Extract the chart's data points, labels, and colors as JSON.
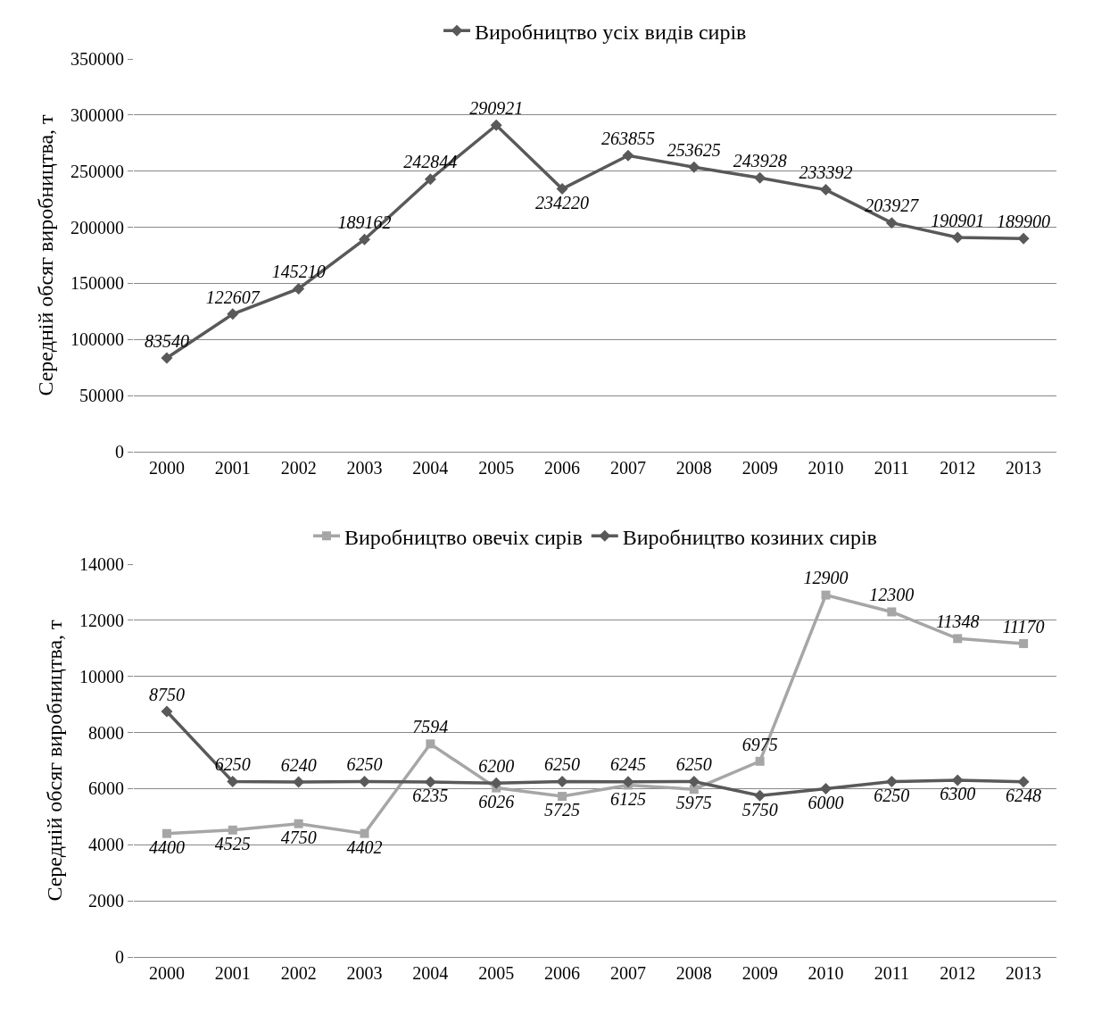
{
  "chart_data": [
    {
      "type": "line",
      "ylabel": "Середній обсяг виробництва, т",
      "categories": [
        "2000",
        "2001",
        "2002",
        "2003",
        "2004",
        "2005",
        "2006",
        "2007",
        "2008",
        "2009",
        "2010",
        "2011",
        "2012",
        "2013"
      ],
      "series": [
        {
          "name": "Виробництво усіх видів сирів",
          "color": "#595959",
          "marker": "diamond",
          "values": [
            83540,
            122607,
            145210,
            189162,
            242844,
            290921,
            234220,
            263855,
            253625,
            243928,
            233392,
            203927,
            190901,
            189900
          ]
        }
      ],
      "ylim": [
        0,
        350000
      ],
      "yticks": [
        0,
        50000,
        100000,
        150000,
        200000,
        250000,
        300000,
        350000
      ],
      "grid": "y",
      "legend": "top",
      "data_labels": true
    },
    {
      "type": "line",
      "ylabel": "Середній обсяг виробництва, т",
      "categories": [
        "2000",
        "2001",
        "2002",
        "2003",
        "2004",
        "2005",
        "2006",
        "2007",
        "2008",
        "2009",
        "2010",
        "2011",
        "2012",
        "2013"
      ],
      "series": [
        {
          "name": "Виробництво овечіх сирів",
          "color": "#a6a6a6",
          "marker": "square",
          "values": [
            4400,
            4525,
            4750,
            4402,
            7594,
            6026,
            5725,
            6125,
            5975,
            6975,
            12900,
            12300,
            11348,
            11170
          ]
        },
        {
          "name": "Виробництво козиних сирів",
          "color": "#595959",
          "marker": "diamond",
          "values": [
            8750,
            6250,
            6240,
            6250,
            6235,
            6200,
            6250,
            6245,
            6250,
            5750,
            6000,
            6250,
            6300,
            6248
          ]
        }
      ],
      "ylim": [
        0,
        14000
      ],
      "yticks": [
        0,
        2000,
        4000,
        6000,
        8000,
        10000,
        12000,
        14000
      ],
      "grid": "y",
      "legend": "top",
      "data_labels": true
    }
  ]
}
